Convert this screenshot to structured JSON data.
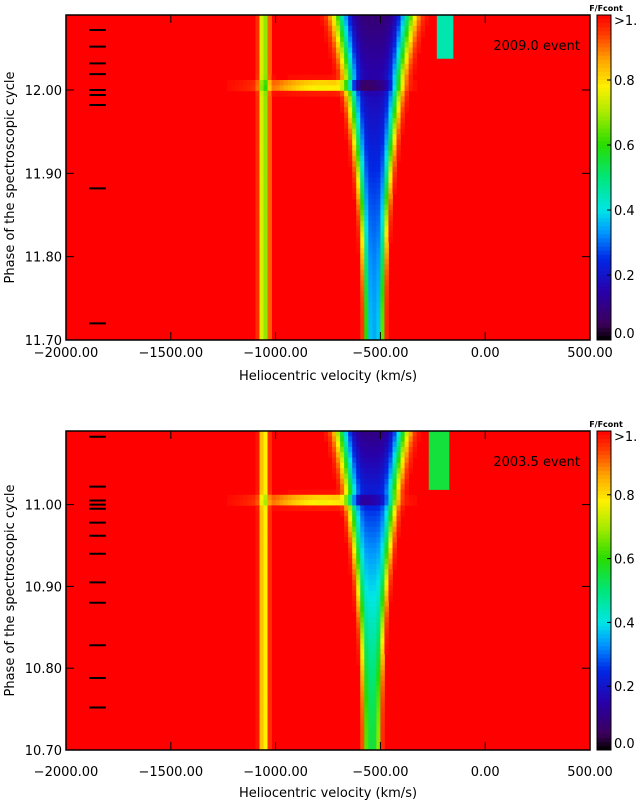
{
  "colorbar": {
    "title": "F/Fcont",
    "ticks": [
      {
        "value": 1.0,
        "label": ">1."
      },
      {
        "value": 0.8,
        "label": "0.8"
      },
      {
        "value": 0.6,
        "label": "0.6"
      },
      {
        "value": 0.4,
        "label": "0.4"
      },
      {
        "value": 0.2,
        "label": "0.2"
      },
      {
        "value": 0.0,
        "label": "0.0"
      }
    ],
    "range": [
      0.0,
      1.0
    ]
  },
  "chart_data": [
    {
      "type": "heatmap",
      "annotation": "2009.0 event",
      "xlabel": "Heliocentric velocity (km/s)",
      "ylabel": "Phase of the spectroscopic cycle",
      "xlim": [
        -2000,
        500
      ],
      "ylim": [
        11.7,
        12.09
      ],
      "xticks": [
        {
          "value": -2000,
          "label": "−2000.00"
        },
        {
          "value": -1500,
          "label": "−1500.00"
        },
        {
          "value": -1000,
          "label": "−1000.00"
        },
        {
          "value": -500,
          "label": "−500.00"
        },
        {
          "value": 0,
          "label": "0.00"
        },
        {
          "value": 500,
          "label": "500.00"
        }
      ],
      "yticks": [
        {
          "value": 11.7,
          "label": "11.70"
        },
        {
          "value": 11.8,
          "label": "11.80"
        },
        {
          "value": 11.9,
          "label": "11.90"
        },
        {
          "value": 12.0,
          "label": "12.00"
        }
      ],
      "observation_phases": [
        11.72,
        11.882,
        11.982,
        11.994,
        12.0,
        12.019,
        12.032,
        12.052,
        12.072
      ],
      "features": [
        {
          "center": -530,
          "width_low": 45,
          "width_high": 180,
          "depth_low": 0.35,
          "depth_high": 0.08
        },
        {
          "center": -1055,
          "width": 22,
          "depth": 0.65
        }
      ]
    },
    {
      "type": "heatmap",
      "annotation": "2003.5 event",
      "xlabel": "Heliocentric velocity (km/s)",
      "ylabel": "Phase of the spectroscopic cycle",
      "xlim": [
        -2000,
        500
      ],
      "ylim": [
        10.7,
        11.09
      ],
      "xticks": [
        {
          "value": -2000,
          "label": "−2000.00"
        },
        {
          "value": -1500,
          "label": "−1500.00"
        },
        {
          "value": -1000,
          "label": "−1000.00"
        },
        {
          "value": -500,
          "label": "−500.00"
        },
        {
          "value": 0,
          "label": "0.00"
        },
        {
          "value": 500,
          "label": "500.00"
        }
      ],
      "yticks": [
        {
          "value": 10.7,
          "label": "10.70"
        },
        {
          "value": 10.8,
          "label": "10.80"
        },
        {
          "value": 10.9,
          "label": "10.90"
        },
        {
          "value": 11.0,
          "label": "11.00"
        }
      ],
      "observation_phases": [
        10.752,
        10.788,
        10.828,
        10.88,
        10.905,
        10.94,
        10.962,
        10.978,
        10.995,
        11.0,
        11.005,
        11.022,
        11.083
      ],
      "features": [
        {
          "center": -540,
          "width_low": 40,
          "width_high": 160,
          "depth_low": 0.55,
          "depth_high": 0.1
        },
        {
          "center": -1055,
          "width": 20,
          "depth": 0.75
        }
      ]
    }
  ]
}
